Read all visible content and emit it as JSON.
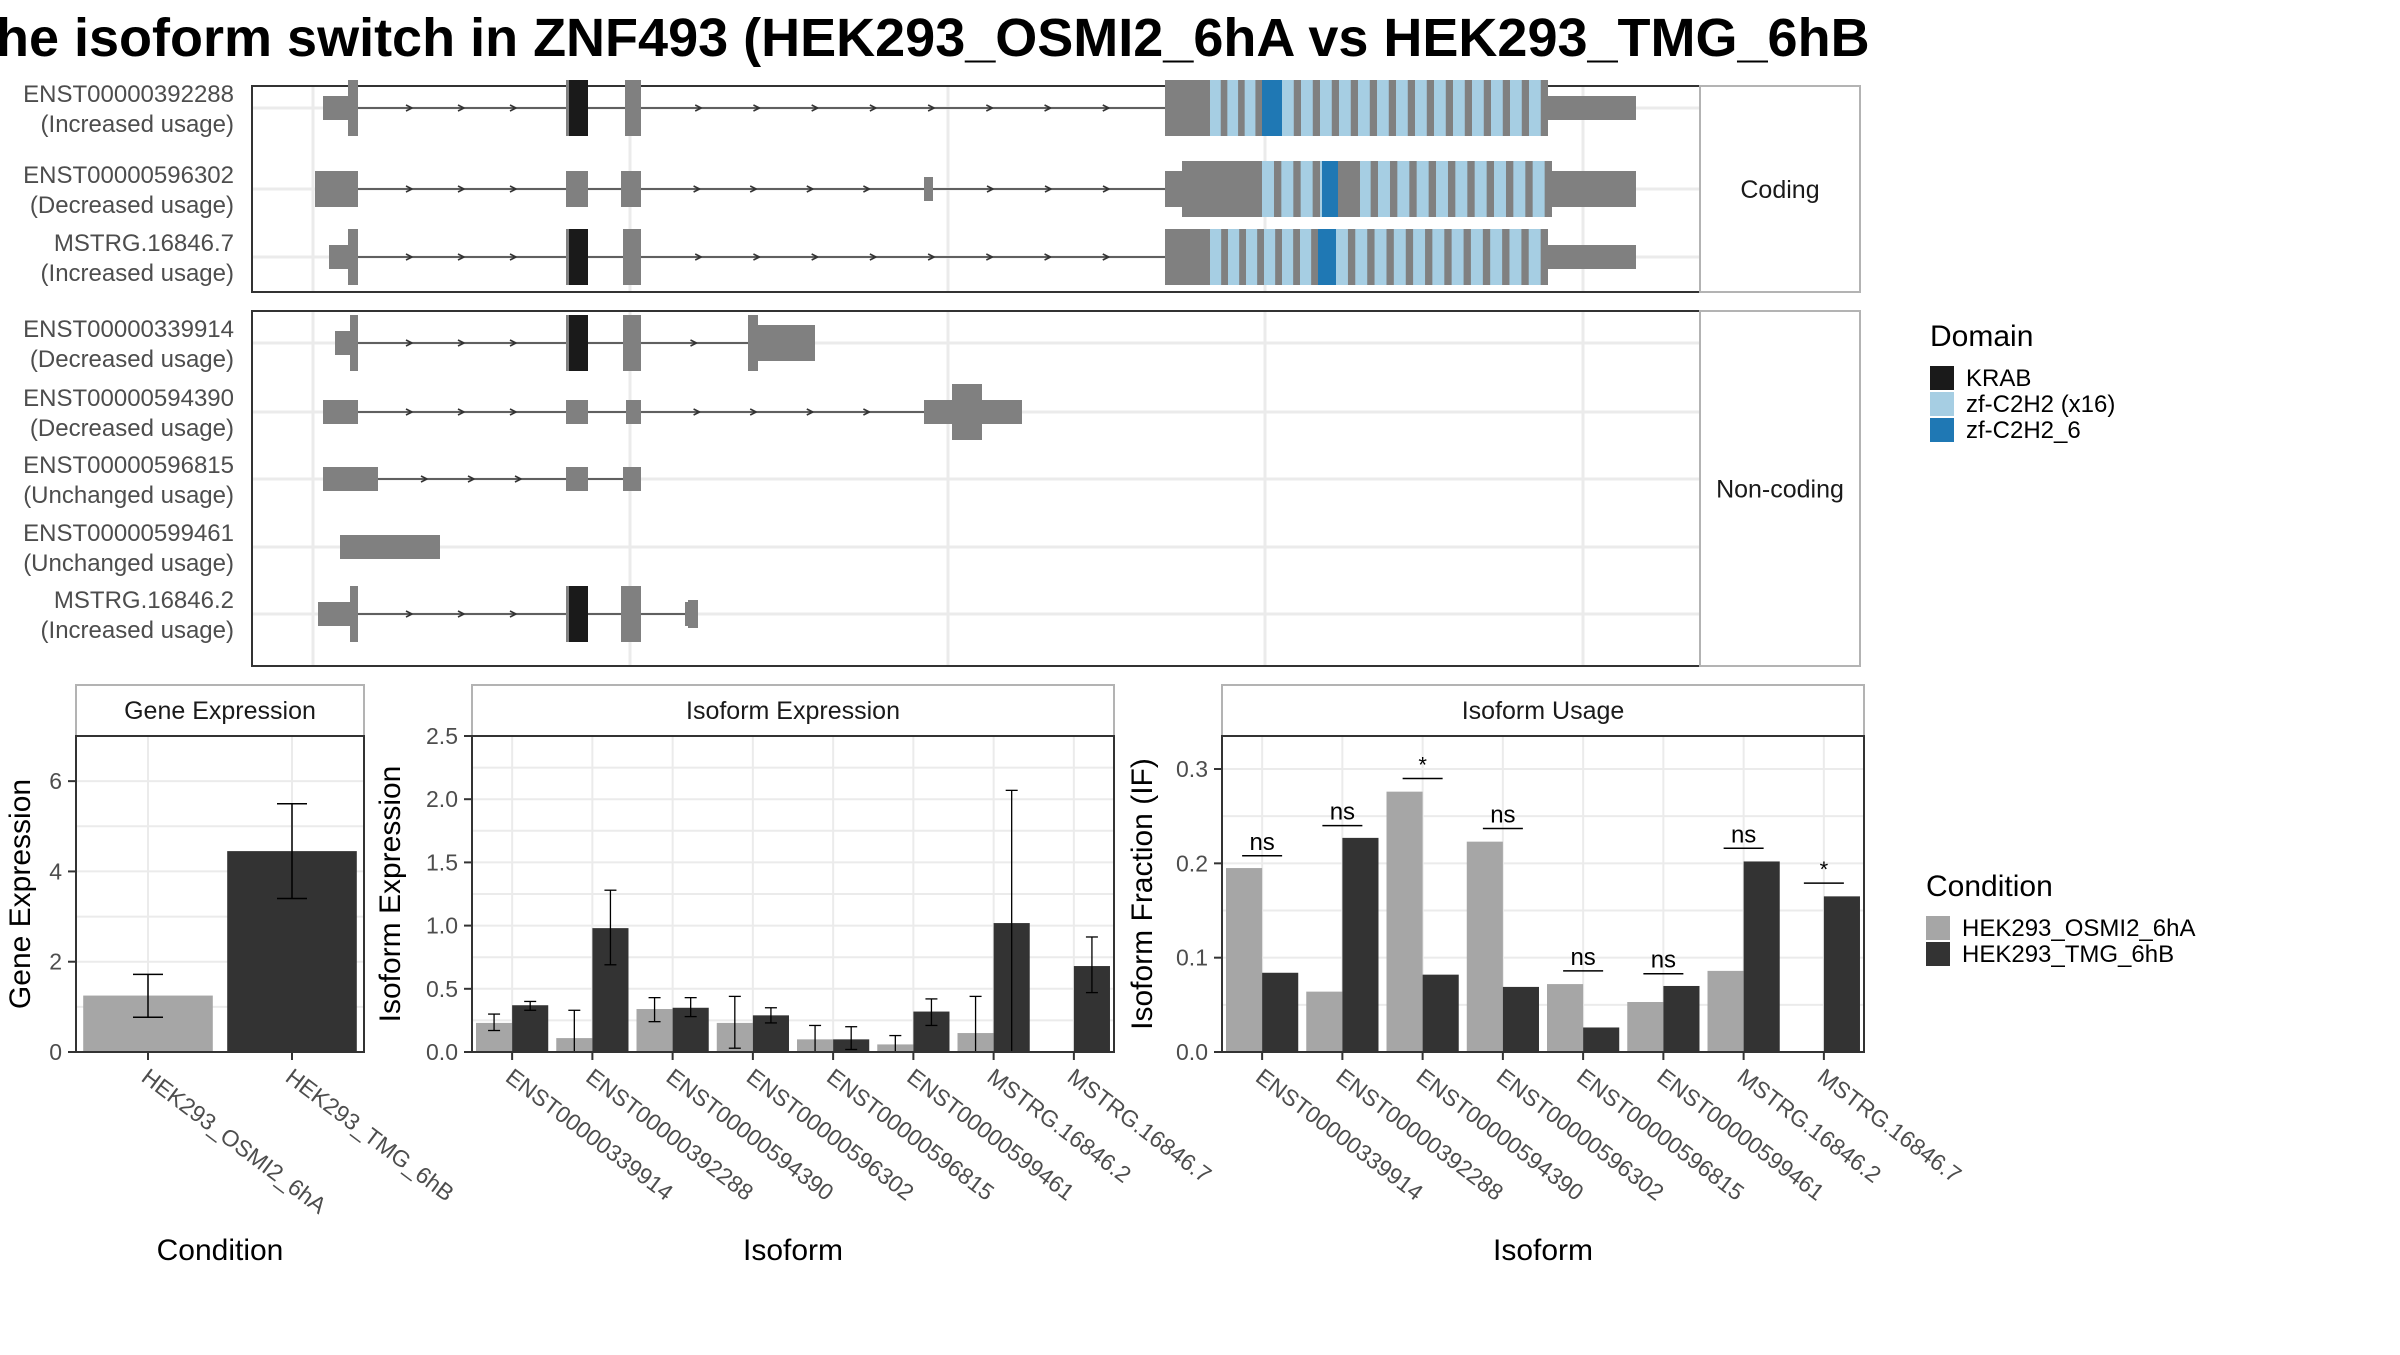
{
  "title": "he isoform switch in ZNF493 (HEK293_OSMI2_6hA vs HEK293_TMG_6hB",
  "structure": {
    "facets": [
      {
        "label": "Coding",
        "transcripts": [
          {
            "id": "ENST00000392288",
            "usage": "(Increased usage)"
          },
          {
            "id": "ENST00000596302",
            "usage": "(Decreased usage)"
          },
          {
            "id": "MSTRG.16846.7",
            "usage": "(Increased usage)"
          }
        ]
      },
      {
        "label": "Non-coding",
        "transcripts": [
          {
            "id": "ENST00000339914",
            "usage": "(Decreased usage)"
          },
          {
            "id": "ENST00000594390",
            "usage": "(Decreased usage)"
          },
          {
            "id": "ENST00000596815",
            "usage": "(Unchanged usage)"
          },
          {
            "id": "ENST00000599461",
            "usage": "(Unchanged usage)"
          },
          {
            "id": "MSTRG.16846.2",
            "usage": "(Increased usage)"
          }
        ]
      }
    ]
  },
  "legend_domain": {
    "title": "Domain",
    "items": [
      {
        "label": "KRAB",
        "color": "#1a1a1a"
      },
      {
        "label": "zf-C2H2 (x16)",
        "color": "#a6cee3"
      },
      {
        "label": "zf-C2H2_6",
        "color": "#1f78b4"
      }
    ]
  },
  "legend_condition": {
    "title": "Condition",
    "items": [
      {
        "label": "HEK293_OSMI2_6hA",
        "color": "#a6a6a6"
      },
      {
        "label": "HEK293_TMG_6hB",
        "color": "#333333"
      }
    ]
  },
  "chart_data": [
    {
      "type": "bar",
      "title": "Gene Expression",
      "xlabel": "Condition",
      "ylabel": "Gene Expression",
      "ylim": [
        0,
        7
      ],
      "yticks": [
        0,
        2,
        4,
        6
      ],
      "categories": [
        "HEK293_OSMI2_6hA",
        "HEK293_TMG_6hB"
      ],
      "values": [
        1.25,
        4.45
      ],
      "errors": [
        [
          0.77,
          1.72
        ],
        [
          3.4,
          5.5
        ]
      ],
      "colors": [
        "#a6a6a6",
        "#333333"
      ]
    },
    {
      "type": "bar",
      "title": "Isoform Expression",
      "xlabel": "Isoform",
      "ylabel": "Isoform Expression",
      "ylim": [
        0,
        2.5
      ],
      "yticks": [
        0.0,
        0.5,
        1.0,
        1.5,
        2.0,
        2.5
      ],
      "categories": [
        "ENST00000339914",
        "ENST00000392288",
        "ENST00000594390",
        "ENST00000596302",
        "ENST00000596815",
        "ENST00000599461",
        "MSTRG.16846.2",
        "MSTRG.16846.7"
      ],
      "series": [
        {
          "name": "HEK293_OSMI2_6hA",
          "values": [
            0.23,
            0.11,
            0.34,
            0.23,
            0.1,
            0.06,
            0.15,
            0.0
          ],
          "errors": [
            [
              0.17,
              0.3
            ],
            [
              0.0,
              0.33
            ],
            [
              0.24,
              0.43
            ],
            [
              0.03,
              0.44
            ],
            [
              0.0,
              0.21
            ],
            [
              0.0,
              0.13
            ],
            [
              0.0,
              0.44
            ],
            [
              0.0,
              0.0
            ]
          ]
        },
        {
          "name": "HEK293_TMG_6hB",
          "values": [
            0.37,
            0.98,
            0.35,
            0.29,
            0.1,
            0.32,
            1.02,
            0.68
          ],
          "errors": [
            [
              0.33,
              0.4
            ],
            [
              0.69,
              1.28
            ],
            [
              0.28,
              0.43
            ],
            [
              0.23,
              0.35
            ],
            [
              0.02,
              0.2
            ],
            [
              0.21,
              0.42
            ],
            [
              0.0,
              2.07
            ],
            [
              0.47,
              0.91
            ]
          ]
        }
      ]
    },
    {
      "type": "bar",
      "title": "Isoform Usage",
      "xlabel": "Isoform",
      "ylabel": "Isoform Fraction (IF)",
      "ylim": [
        0,
        0.335
      ],
      "yticks": [
        0.0,
        0.1,
        0.2,
        0.3
      ],
      "categories": [
        "ENST00000339914",
        "ENST00000392288",
        "ENST00000594390",
        "ENST00000596302",
        "ENST00000596815",
        "ENST00000599461",
        "MSTRG.16846.2",
        "MSTRG.16846.7"
      ],
      "series": [
        {
          "name": "HEK293_OSMI2_6hA",
          "values": [
            0.195,
            0.064,
            0.276,
            0.223,
            0.072,
            0.053,
            0.086,
            0.0
          ]
        },
        {
          "name": "HEK293_TMG_6hB",
          "values": [
            0.084,
            0.227,
            0.082,
            0.069,
            0.026,
            0.07,
            0.202,
            0.165
          ]
        }
      ],
      "significance": [
        {
          "label": "ns",
          "y": 0.208
        },
        {
          "label": "ns",
          "y": 0.24
        },
        {
          "label": "*",
          "y": 0.29
        },
        {
          "label": "ns",
          "y": 0.237
        },
        {
          "label": "ns",
          "y": 0.086
        },
        {
          "label": "ns",
          "y": 0.083
        },
        {
          "label": "ns",
          "y": 0.216
        },
        {
          "label": "*",
          "y": 0.179
        }
      ]
    }
  ]
}
